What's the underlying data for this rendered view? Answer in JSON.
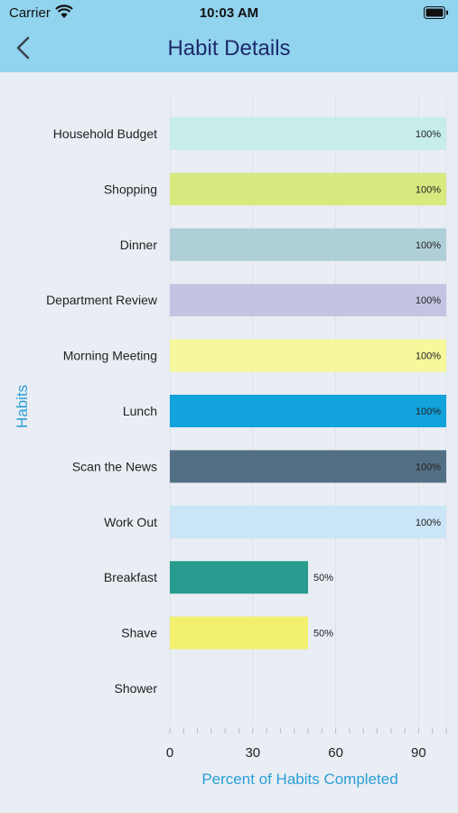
{
  "status": {
    "carrier": "Carrier",
    "time": "10:03 AM"
  },
  "nav": {
    "title": "Habit Details"
  },
  "icons": {
    "back": "chevron-left-icon",
    "wifi": "wifi-icon",
    "battery": "battery-icon"
  },
  "colors": {
    "header_bg": "#92d3ee",
    "title": "#1d2a6b",
    "axis_label": "#2a9fd6",
    "background": "#e9edf4"
  },
  "chart_data": {
    "type": "bar",
    "orientation": "horizontal",
    "title": "",
    "xlabel": "Percent of Habits Completed",
    "ylabel": "Habits",
    "xlim": [
      0,
      100
    ],
    "xticks": [
      0,
      30,
      60,
      90
    ],
    "grid": true,
    "categories": [
      "Household Budget",
      "Shopping",
      "Dinner",
      "Department Review",
      "Morning Meeting",
      "Lunch",
      "Scan the News",
      "Work Out",
      "Breakfast",
      "Shave",
      "Shower"
    ],
    "values": [
      100,
      100,
      100,
      100,
      100,
      100,
      100,
      100,
      50,
      50,
      0
    ],
    "value_labels": [
      "100%",
      "100%",
      "100%",
      "100%",
      "100%",
      "100%",
      "100%",
      "100%",
      "50%",
      "50%",
      ""
    ],
    "colors": [
      "#c6ede9",
      "#d7e97f",
      "#afcfd8",
      "#c5c3e2",
      "#f7f79b",
      "#12a2dc",
      "#536f84",
      "#c9e5f6",
      "#279c8e",
      "#f2f06d",
      "#cccccc"
    ]
  }
}
